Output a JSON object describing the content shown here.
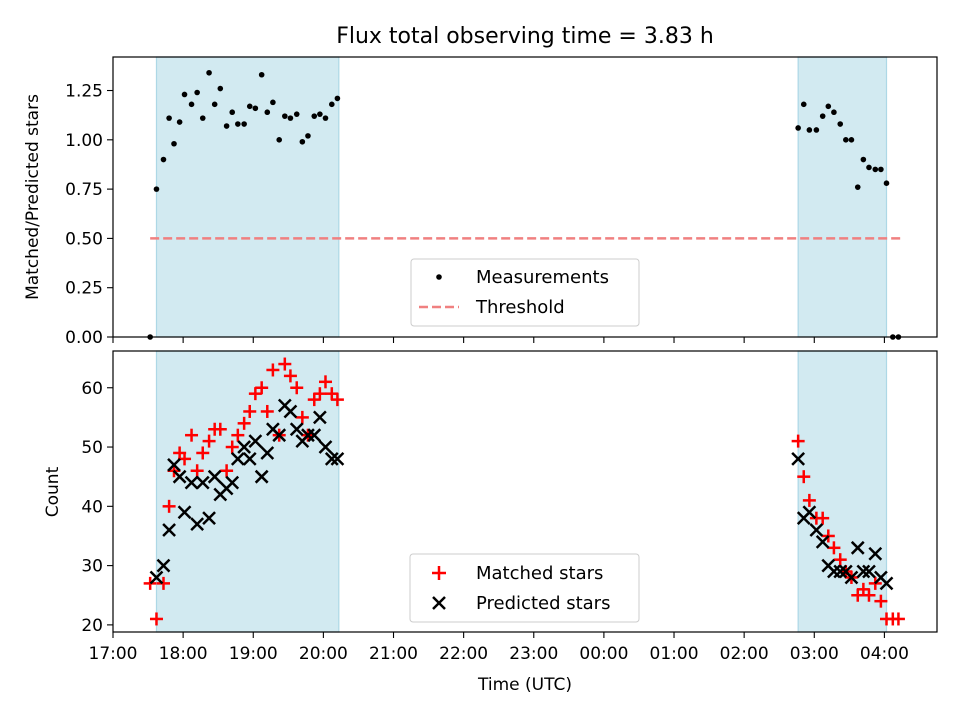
{
  "title": "Flux total observing time = 3.83 h",
  "colors": {
    "shade": "#add8e6",
    "threshold": "#f08080",
    "measurement": "#000000",
    "matched": "#ff0000",
    "predicted": "#000000"
  },
  "chart_data": [
    {
      "type": "scatter",
      "panel": "top",
      "ylabel": "Matched/Predicted stars",
      "xlabel": "",
      "ylim": [
        0,
        1.42
      ],
      "yticks": [
        "0.00",
        "0.25",
        "0.50",
        "0.75",
        "1.00",
        "1.25"
      ],
      "shaded_spans": [
        [
          17.62,
          20.22
        ],
        [
          26.77,
          28.03
        ]
      ],
      "threshold": {
        "name": "Threshold",
        "y": 0.5,
        "x_range": [
          17.53,
          28.23
        ]
      },
      "legend": {
        "position": "lower center",
        "entries": [
          "Measurements",
          "Threshold"
        ]
      },
      "series": [
        {
          "name": "Measurements",
          "x": [
            17.53,
            17.62,
            17.72,
            17.8,
            17.87,
            17.95,
            18.02,
            18.12,
            18.2,
            18.28,
            18.37,
            18.45,
            18.53,
            18.62,
            18.7,
            18.78,
            18.87,
            18.95,
            19.03,
            19.12,
            19.2,
            19.28,
            19.37,
            19.45,
            19.53,
            19.62,
            19.7,
            19.78,
            19.87,
            19.95,
            20.03,
            20.12,
            20.2,
            26.77,
            26.85,
            26.93,
            27.03,
            27.12,
            27.2,
            27.28,
            27.37,
            27.45,
            27.53,
            27.62,
            27.7,
            27.78,
            27.87,
            27.95,
            28.03,
            28.12,
            28.2
          ],
          "y": [
            0.0,
            0.75,
            0.9,
            1.11,
            0.98,
            1.09,
            1.23,
            1.18,
            1.24,
            1.11,
            1.34,
            1.18,
            1.26,
            1.07,
            1.14,
            1.08,
            1.08,
            1.17,
            1.16,
            1.33,
            1.14,
            1.19,
            1.0,
            1.12,
            1.11,
            1.13,
            0.99,
            1.02,
            1.12,
            1.13,
            1.11,
            1.18,
            1.21,
            1.06,
            1.18,
            1.05,
            1.05,
            1.12,
            1.17,
            1.14,
            1.08,
            1.0,
            1.0,
            0.76,
            0.9,
            0.86,
            0.85,
            0.85,
            0.78,
            0.0,
            0.0
          ]
        }
      ]
    },
    {
      "type": "scatter",
      "panel": "bottom",
      "ylabel": "Count",
      "xlabel": "Time (UTC)",
      "ylim": [
        18.8,
        66.2
      ],
      "yticks": [
        "20",
        "30",
        "40",
        "50",
        "60"
      ],
      "xlim": [
        17.0,
        28.75
      ],
      "xticks": [
        "17:00",
        "18:00",
        "19:00",
        "20:00",
        "21:00",
        "22:00",
        "23:00",
        "00:00",
        "01:00",
        "02:00",
        "03:00",
        "04:00"
      ],
      "shaded_spans": [
        [
          17.62,
          20.22
        ],
        [
          26.77,
          28.03
        ]
      ],
      "legend": {
        "position": "lower center",
        "entries": [
          "Matched stars",
          "Predicted stars"
        ]
      },
      "series": [
        {
          "name": "Matched stars",
          "x": [
            17.53,
            17.62,
            17.72,
            17.8,
            17.87,
            17.95,
            18.02,
            18.12,
            18.2,
            18.28,
            18.37,
            18.45,
            18.53,
            18.62,
            18.7,
            18.78,
            18.87,
            18.95,
            19.03,
            19.12,
            19.2,
            19.28,
            19.37,
            19.45,
            19.53,
            19.62,
            19.7,
            19.78,
            19.87,
            19.95,
            20.03,
            20.12,
            20.2,
            26.77,
            26.85,
            26.93,
            27.03,
            27.12,
            27.2,
            27.28,
            27.37,
            27.45,
            27.53,
            27.62,
            27.7,
            27.78,
            27.87,
            27.95,
            28.03,
            28.12,
            28.2
          ],
          "y": [
            27,
            21,
            27,
            40,
            46,
            49,
            48,
            52,
            46,
            49,
            51,
            53,
            53,
            46,
            50,
            52,
            54,
            56,
            59,
            60,
            56,
            63,
            52,
            64,
            62,
            60,
            55,
            52,
            58,
            59,
            61,
            59,
            58,
            51,
            45,
            41,
            38,
            38,
            35,
            33,
            31,
            29,
            28,
            25,
            26,
            25,
            27,
            24,
            21,
            21,
            21
          ]
        },
        {
          "name": "Predicted stars",
          "x": [
            17.62,
            17.72,
            17.8,
            17.87,
            17.95,
            18.02,
            18.12,
            18.2,
            18.28,
            18.37,
            18.45,
            18.53,
            18.62,
            18.7,
            18.78,
            18.87,
            18.95,
            19.03,
            19.12,
            19.2,
            19.28,
            19.37,
            19.45,
            19.53,
            19.62,
            19.7,
            19.78,
            19.87,
            19.95,
            20.03,
            20.12,
            20.2,
            26.77,
            26.85,
            26.93,
            27.03,
            27.12,
            27.2,
            27.28,
            27.37,
            27.45,
            27.53,
            27.62,
            27.7,
            27.78,
            27.87,
            27.95,
            28.03
          ],
          "y": [
            28,
            30,
            36,
            47,
            45,
            39,
            44,
            37,
            44,
            38,
            45,
            42,
            43,
            44,
            48,
            50,
            48,
            51,
            45,
            49,
            53,
            52,
            57,
            56,
            53,
            51,
            52,
            52,
            55,
            50,
            48,
            48,
            48,
            38,
            39,
            36,
            34,
            30,
            29,
            29,
            29,
            28,
            33,
            29,
            29,
            32,
            28,
            27
          ]
        }
      ]
    }
  ]
}
